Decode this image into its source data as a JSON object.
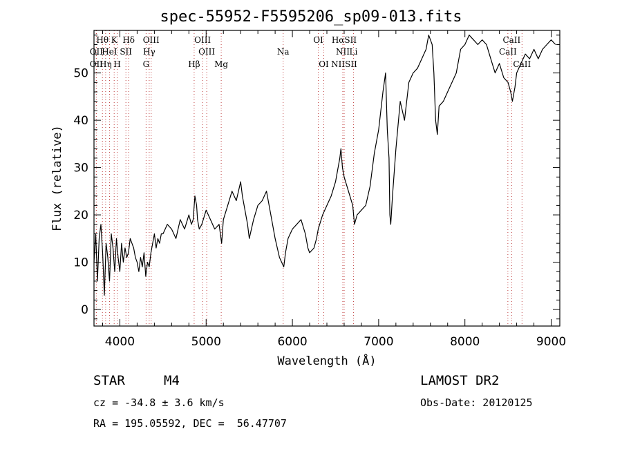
{
  "chart_data": {
    "type": "line",
    "title": "spec-55952-F5595206_sp09-013.fits",
    "xlabel": "Wavelength (Å)",
    "ylabel": "Flux (relative)",
    "xlim": [
      3700,
      9100
    ],
    "ylim": [
      -3.5,
      59
    ],
    "xticks": [
      4000,
      5000,
      6000,
      7000,
      8000,
      9000
    ],
    "yticks": [
      0,
      10,
      20,
      30,
      40,
      50
    ],
    "series": [
      {
        "name": "flux",
        "x": [
          3700,
          3720,
          3740,
          3760,
          3780,
          3800,
          3820,
          3840,
          3860,
          3880,
          3900,
          3920,
          3940,
          3960,
          3980,
          4000,
          4020,
          4040,
          4060,
          4080,
          4100,
          4120,
          4140,
          4160,
          4180,
          4200,
          4220,
          4240,
          4260,
          4280,
          4300,
          4320,
          4340,
          4360,
          4380,
          4400,
          4420,
          4440,
          4460,
          4480,
          4500,
          4550,
          4600,
          4650,
          4700,
          4750,
          4800,
          4830,
          4850,
          4870,
          4890,
          4900,
          4920,
          4950,
          5000,
          5050,
          5100,
          5150,
          5180,
          5200,
          5250,
          5300,
          5350,
          5400,
          5420,
          5440,
          5460,
          5480,
          5500,
          5550,
          5600,
          5650,
          5700,
          5750,
          5800,
          5850,
          5900,
          5920,
          5950,
          6000,
          6050,
          6100,
          6150,
          6180,
          6200,
          6250,
          6280,
          6300,
          6350,
          6400,
          6450,
          6500,
          6530,
          6550,
          6563,
          6580,
          6600,
          6650,
          6700,
          6720,
          6750,
          6800,
          6850,
          6900,
          6950,
          7000,
          7050,
          7080,
          7100,
          7120,
          7130,
          7140,
          7160,
          7200,
          7250,
          7300,
          7350,
          7400,
          7450,
          7500,
          7550,
          7580,
          7600,
          7620,
          7640,
          7660,
          7680,
          7700,
          7750,
          7800,
          7850,
          7900,
          7950,
          8000,
          8050,
          8100,
          8150,
          8200,
          8250,
          8300,
          8350,
          8400,
          8450,
          8500,
          8530,
          8550,
          8580,
          8600,
          8650,
          8700,
          8750,
          8800,
          8850,
          8900,
          8950,
          9000,
          9050
        ],
        "values": [
          10,
          16,
          6,
          15,
          18,
          12,
          3,
          14,
          11,
          6,
          16,
          13,
          8,
          15,
          11,
          8,
          14,
          10,
          13,
          11,
          12,
          15,
          14,
          13,
          11,
          10,
          8,
          11,
          9,
          12,
          7,
          10,
          9,
          12,
          14,
          16,
          13,
          15,
          14,
          16,
          16,
          18,
          17,
          15,
          19,
          17,
          20,
          18,
          19,
          24,
          22,
          19,
          17,
          18,
          21,
          19,
          17,
          18,
          14,
          19,
          22,
          25,
          23,
          27,
          24,
          22,
          20,
          18,
          15,
          19,
          22,
          23,
          25,
          20,
          15,
          11,
          9,
          12,
          15,
          17,
          18,
          19,
          16,
          13,
          12,
          13,
          15,
          17,
          20,
          22,
          24,
          27,
          30,
          32,
          34,
          30,
          28,
          25,
          22,
          18,
          20,
          21,
          22,
          26,
          33,
          38,
          46,
          50,
          38,
          32,
          20,
          18,
          24,
          34,
          44,
          40,
          48,
          50,
          51,
          53,
          55,
          58,
          57,
          56,
          50,
          40,
          37,
          43,
          44,
          46,
          48,
          50,
          55,
          56,
          58,
          57,
          56,
          57,
          56,
          53,
          50,
          52,
          49,
          48,
          46,
          44,
          47,
          50,
          52,
          54,
          53,
          55,
          53,
          55,
          56,
          57,
          56
        ],
        "color": "#000000"
      }
    ],
    "lines": [
      {
        "label": "Hθ",
        "x": 3798,
        "row": 0
      },
      {
        "label": "K",
        "x": 3934,
        "row": 0
      },
      {
        "label": "Hδ",
        "x": 4102,
        "row": 0
      },
      {
        "label": "OIII",
        "x": 4363,
        "row": 0
      },
      {
        "label": "OIII",
        "x": 4959,
        "row": 0
      },
      {
        "label": "OI",
        "x": 6300,
        "row": 0
      },
      {
        "label": "HαSII",
        "x": 6600,
        "row": 0
      },
      {
        "label": "CaII",
        "x": 8542,
        "row": 0
      },
      {
        "label": "OII",
        "x": 3727,
        "row": 1
      },
      {
        "label": "HeI",
        "x": 3880,
        "row": 1
      },
      {
        "label": "SII",
        "x": 4070,
        "row": 1
      },
      {
        "label": "Hγ",
        "x": 4340,
        "row": 1
      },
      {
        "label": "OIII",
        "x": 5007,
        "row": 1
      },
      {
        "label": "Na",
        "x": 5893,
        "row": 1
      },
      {
        "label": "NII",
        "x": 6584,
        "row": 1
      },
      {
        "label": "Li",
        "x": 6708,
        "row": 1
      },
      {
        "label": "CaII",
        "x": 8498,
        "row": 1
      },
      {
        "label": "OII",
        "x": 3727,
        "row": 2
      },
      {
        "label": "Hη",
        "x": 3835,
        "row": 2
      },
      {
        "label": "H",
        "x": 3969,
        "row": 2
      },
      {
        "label": "G",
        "x": 4304,
        "row": 2
      },
      {
        "label": "Hβ",
        "x": 4861,
        "row": 2
      },
      {
        "label": "Mg",
        "x": 5175,
        "row": 2
      },
      {
        "label": "OI",
        "x": 6364,
        "row": 2
      },
      {
        "label": "NIISII",
        "x": 6600,
        "row": 2
      },
      {
        "label": "CaII",
        "x": 8662,
        "row": 2
      }
    ]
  },
  "info": {
    "object_class": "STAR",
    "subclass": "M4",
    "survey": "LAMOST DR2",
    "redshift": "cz = -34.8 ± 3.6 km/s",
    "obs_date": "Obs-Date: 20120125",
    "coords": "RA = 195.05592, DEC =  56.47707"
  }
}
